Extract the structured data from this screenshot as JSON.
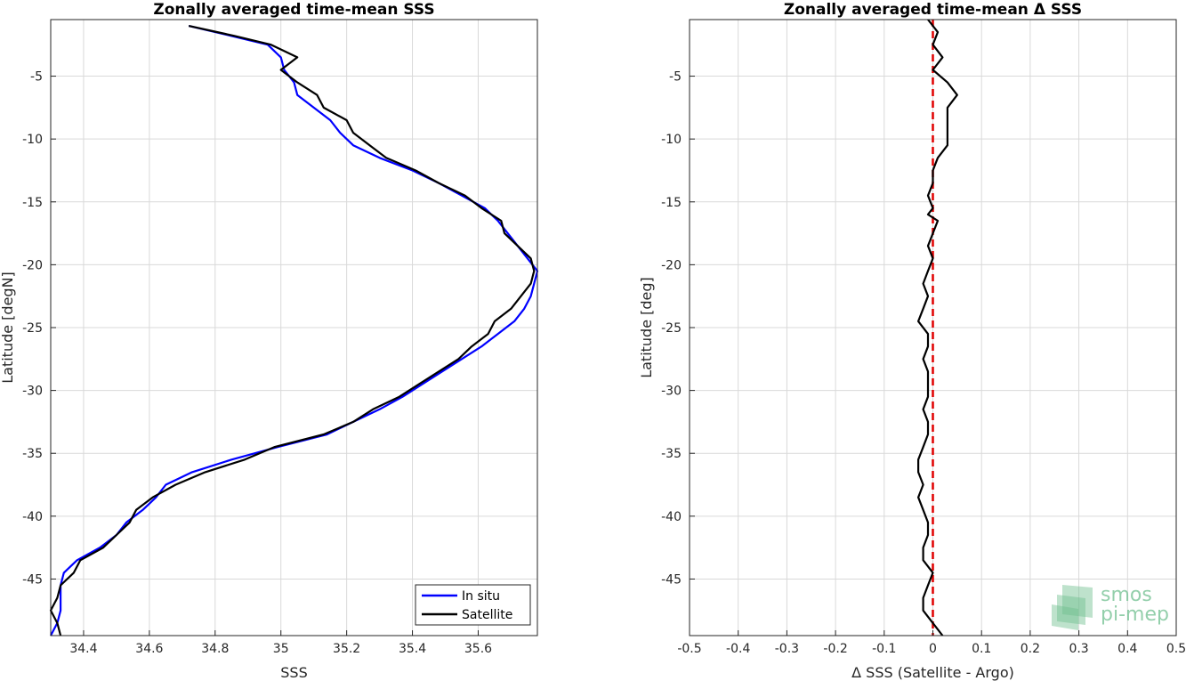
{
  "chart_data": [
    {
      "type": "line",
      "title": "Zonally averaged time-mean SSS",
      "xlabel": "SSS",
      "ylabel": "Latitude [degN]",
      "xlim": [
        34.3,
        35.78
      ],
      "ylim": [
        -49.5,
        -0.5
      ],
      "xticks": [
        34.4,
        34.6,
        34.8,
        35,
        35.2,
        35.4,
        35.6
      ],
      "xtick_labels": [
        "34.4",
        "34.6",
        "34.8",
        "35",
        "35.2",
        "35.4",
        "35.6"
      ],
      "yticks": [
        -5,
        -10,
        -15,
        -20,
        -25,
        -30,
        -35,
        -40,
        -45
      ],
      "ytick_labels": [
        "-5",
        "-10",
        "-15",
        "-20",
        "-25",
        "-30",
        "-35",
        "-40",
        "-45"
      ],
      "grid": true,
      "legend_position": "bottom-right",
      "series": [
        {
          "name": "In situ",
          "color": "#0000ff",
          "points": [
            [
              34.72,
              -1
            ],
            [
              34.85,
              -1.8
            ],
            [
              34.96,
              -2.5
            ],
            [
              35.0,
              -3.5
            ],
            [
              35.01,
              -4.5
            ],
            [
              35.04,
              -5.5
            ],
            [
              35.05,
              -6.5
            ],
            [
              35.1,
              -7.5
            ],
            [
              35.15,
              -8.5
            ],
            [
              35.18,
              -9.5
            ],
            [
              35.22,
              -10.5
            ],
            [
              35.3,
              -11.5
            ],
            [
              35.4,
              -12.5
            ],
            [
              35.48,
              -13.5
            ],
            [
              35.55,
              -14.5
            ],
            [
              35.62,
              -15.5
            ],
            [
              35.66,
              -16.5
            ],
            [
              35.69,
              -17.5
            ],
            [
              35.72,
              -18.5
            ],
            [
              35.75,
              -19.5
            ],
            [
              35.78,
              -20.5
            ],
            [
              35.77,
              -21.5
            ],
            [
              35.76,
              -22.5
            ],
            [
              35.74,
              -23.5
            ],
            [
              35.71,
              -24.5
            ],
            [
              35.66,
              -25.5
            ],
            [
              35.61,
              -26.5
            ],
            [
              35.55,
              -27.5
            ],
            [
              35.49,
              -28.5
            ],
            [
              35.43,
              -29.5
            ],
            [
              35.37,
              -30.5
            ],
            [
              35.3,
              -31.5
            ],
            [
              35.22,
              -32.5
            ],
            [
              35.14,
              -33.5
            ],
            [
              34.99,
              -34.5
            ],
            [
              34.85,
              -35.5
            ],
            [
              34.73,
              -36.5
            ],
            [
              34.65,
              -37.5
            ],
            [
              34.62,
              -38.5
            ],
            [
              34.58,
              -39.5
            ],
            [
              34.53,
              -40.5
            ],
            [
              34.5,
              -41.5
            ],
            [
              34.45,
              -42.5
            ],
            [
              34.38,
              -43.5
            ],
            [
              34.34,
              -44.5
            ],
            [
              34.33,
              -45.5
            ],
            [
              34.33,
              -46.5
            ],
            [
              34.33,
              -47.5
            ],
            [
              34.32,
              -48.5
            ],
            [
              34.3,
              -49.5
            ]
          ]
        },
        {
          "name": "Satellite",
          "color": "#000000",
          "points": [
            [
              34.72,
              -1
            ],
            [
              34.86,
              -1.8
            ],
            [
              34.97,
              -2.5
            ],
            [
              35.05,
              -3.5
            ],
            [
              35.0,
              -4.5
            ],
            [
              35.05,
              -5.5
            ],
            [
              35.11,
              -6.5
            ],
            [
              35.13,
              -7.5
            ],
            [
              35.2,
              -8.5
            ],
            [
              35.22,
              -9.5
            ],
            [
              35.27,
              -10.5
            ],
            [
              35.32,
              -11.5
            ],
            [
              35.41,
              -12.5
            ],
            [
              35.48,
              -13.5
            ],
            [
              35.56,
              -14.5
            ],
            [
              35.61,
              -15.5
            ],
            [
              35.67,
              -16.5
            ],
            [
              35.68,
              -17.5
            ],
            [
              35.72,
              -18.5
            ],
            [
              35.76,
              -19.5
            ],
            [
              35.77,
              -20.5
            ],
            [
              35.76,
              -21.5
            ],
            [
              35.73,
              -22.5
            ],
            [
              35.7,
              -23.5
            ],
            [
              35.65,
              -24.5
            ],
            [
              35.63,
              -25.5
            ],
            [
              35.58,
              -26.5
            ],
            [
              35.54,
              -27.5
            ],
            [
              35.48,
              -28.5
            ],
            [
              35.42,
              -29.5
            ],
            [
              35.36,
              -30.5
            ],
            [
              35.28,
              -31.5
            ],
            [
              35.22,
              -32.5
            ],
            [
              35.13,
              -33.5
            ],
            [
              34.98,
              -34.5
            ],
            [
              34.89,
              -35.5
            ],
            [
              34.77,
              -36.5
            ],
            [
              34.68,
              -37.5
            ],
            [
              34.61,
              -38.5
            ],
            [
              34.56,
              -39.5
            ],
            [
              34.54,
              -40.5
            ],
            [
              34.5,
              -41.5
            ],
            [
              34.46,
              -42.5
            ],
            [
              34.39,
              -43.5
            ],
            [
              34.37,
              -44.5
            ],
            [
              34.33,
              -45.5
            ],
            [
              34.32,
              -46.5
            ],
            [
              34.3,
              -47.5
            ],
            [
              34.32,
              -48.5
            ],
            [
              34.33,
              -49.5
            ]
          ]
        }
      ]
    },
    {
      "type": "line",
      "title": "Zonally averaged time-mean Δ SSS",
      "xlabel": "Δ SSS (Satellite - Argo)",
      "ylabel": "Latitude [deg]",
      "xlim": [
        -0.5,
        0.5
      ],
      "ylim": [
        -49.5,
        -0.5
      ],
      "xticks": [
        -0.5,
        -0.4,
        -0.3,
        -0.2,
        -0.1,
        0,
        0.1,
        0.2,
        0.3,
        0.4,
        0.5
      ],
      "xtick_labels": [
        "-0.5",
        "-0.4",
        "-0.3",
        "-0.2",
        "-0.1",
        "0",
        "0.1",
        "0.2",
        "0.3",
        "0.4",
        "0.5"
      ],
      "yticks": [
        -5,
        -10,
        -15,
        -20,
        -25,
        -30,
        -35,
        -40,
        -45
      ],
      "ytick_labels": [
        "-5",
        "-10",
        "-15",
        "-20",
        "-25",
        "-30",
        "-35",
        "-40",
        "-45"
      ],
      "grid": true,
      "reference_line": {
        "x": 0,
        "color": "#e00000",
        "style": "dashed"
      },
      "series": [
        {
          "color": "#000000",
          "points": [
            [
              -0.01,
              -0.5
            ],
            [
              0.01,
              -1.5
            ],
            [
              0.0,
              -2.5
            ],
            [
              0.02,
              -3.5
            ],
            [
              0.0,
              -4.5
            ],
            [
              0.03,
              -5.5
            ],
            [
              0.05,
              -6.5
            ],
            [
              0.03,
              -7.5
            ],
            [
              0.03,
              -8.5
            ],
            [
              0.03,
              -9.5
            ],
            [
              0.03,
              -10.5
            ],
            [
              0.01,
              -11.5
            ],
            [
              0.0,
              -12.5
            ],
            [
              0.0,
              -13.5
            ],
            [
              -0.01,
              -14.5
            ],
            [
              0.0,
              -15.5
            ],
            [
              -0.01,
              -16
            ],
            [
              0.01,
              -16.5
            ],
            [
              0.0,
              -17.5
            ],
            [
              -0.01,
              -18.5
            ],
            [
              0.0,
              -19.5
            ],
            [
              -0.01,
              -20.5
            ],
            [
              -0.02,
              -21.5
            ],
            [
              -0.01,
              -22.5
            ],
            [
              -0.02,
              -23.5
            ],
            [
              -0.03,
              -24.5
            ],
            [
              -0.01,
              -25.5
            ],
            [
              -0.01,
              -26.5
            ],
            [
              -0.02,
              -27.5
            ],
            [
              -0.01,
              -28.5
            ],
            [
              -0.01,
              -29.5
            ],
            [
              -0.01,
              -30.5
            ],
            [
              -0.02,
              -31.5
            ],
            [
              -0.01,
              -32.5
            ],
            [
              -0.01,
              -33.5
            ],
            [
              -0.02,
              -34.5
            ],
            [
              -0.03,
              -35.5
            ],
            [
              -0.03,
              -36.5
            ],
            [
              -0.02,
              -37.5
            ],
            [
              -0.03,
              -38.5
            ],
            [
              -0.02,
              -39.5
            ],
            [
              -0.01,
              -40.5
            ],
            [
              -0.01,
              -41.5
            ],
            [
              -0.02,
              -42.5
            ],
            [
              -0.02,
              -43.5
            ],
            [
              0.0,
              -44.5
            ],
            [
              -0.01,
              -45.5
            ],
            [
              -0.02,
              -46.5
            ],
            [
              -0.02,
              -47.5
            ],
            [
              0.0,
              -48.5
            ],
            [
              0.02,
              -49.5
            ]
          ]
        }
      ]
    }
  ],
  "watermark": {
    "line1": "smos",
    "line2": "pi-mep",
    "color": "#6fbf8f"
  }
}
